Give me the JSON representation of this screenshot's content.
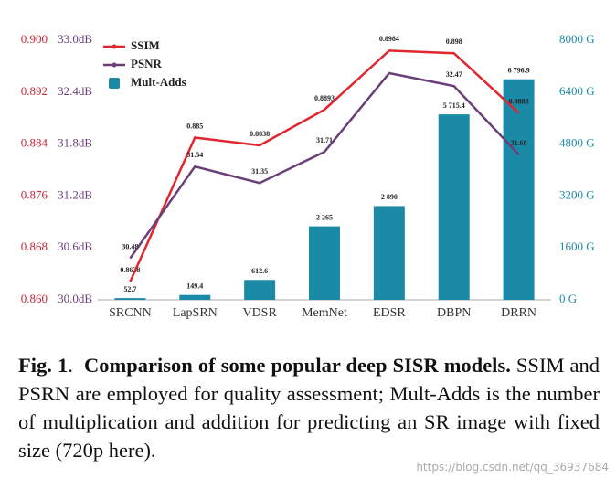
{
  "chart_data": {
    "type": "combo",
    "categories": [
      "SRCNN",
      "LapSRN",
      "VDSR",
      "MemNet",
      "EDSR",
      "DBPN",
      "DRRN"
    ],
    "series": [
      {
        "name": "SSIM",
        "type": "line",
        "color": "#e0262f",
        "axis": "y",
        "values": [
          0.8628,
          0.885,
          0.8838,
          0.8893,
          0.8984,
          0.898,
          0.8888
        ]
      },
      {
        "name": "PSNR",
        "type": "line",
        "color": "#6a3f78",
        "axis": "y3",
        "values": [
          30.48,
          31.54,
          31.35,
          31.71,
          32.62,
          32.47,
          31.68
        ],
        "value_labels": [
          "30.48",
          "31.54",
          "31.35",
          "31.71",
          null,
          "32.47",
          "31.68"
        ]
      },
      {
        "name": "Mult-Adds",
        "type": "bar",
        "color": "#1b8aa6",
        "axis": "y2",
        "values": [
          52.7,
          149.4,
          612.6,
          2265,
          2890,
          5715.4,
          6796.9
        ],
        "value_labels": [
          "52.7",
          "149.4",
          "612.6",
          "2 265",
          "2 890",
          "5 715.4",
          "6 796.9"
        ]
      }
    ],
    "ylim": [
      0.86,
      0.9
    ],
    "yticks": [
      {
        "value": 0.86,
        "label": "0.860"
      },
      0.868,
      0.876,
      0.884,
      0.892,
      {
        "value": 0.9,
        "label": "0.900"
      }
    ],
    "y3lim": [
      30,
      33
    ],
    "y3ticks": [
      {
        "value": 30,
        "label": "30.0dB"
      },
      {
        "value": 30.6,
        "label": "30.6dB"
      },
      {
        "value": 31.2,
        "label": "31.2dB"
      },
      {
        "value": 31.8,
        "label": "31.8dB"
      },
      {
        "value": 32.4,
        "label": "32.4dB"
      },
      {
        "value": 33,
        "label": "33.0dB"
      }
    ],
    "y2lim": [
      0,
      8000
    ],
    "y2ticks": [
      {
        "value": 0,
        "label": "0 G"
      },
      {
        "value": 1600,
        "label": "1600 G"
      },
      {
        "value": 3200,
        "label": "3200 G"
      },
      {
        "value": 4800,
        "label": "4800 G"
      },
      {
        "value": 6400,
        "label": "6400 G"
      },
      {
        "value": 8000,
        "label": "8000 G"
      }
    ],
    "legend": "top-left"
  },
  "caption": {
    "label": "Fig. 1",
    "title": "Comparison of some popular deep SISR models.",
    "body": "SSIM and PSRN are employed for quality assessment; Mult-Adds is the number of multiplication and addition for predicting an SR image with fixed size (720p here)."
  },
  "watermark": "https://blog.csdn.net/qq_36937684"
}
